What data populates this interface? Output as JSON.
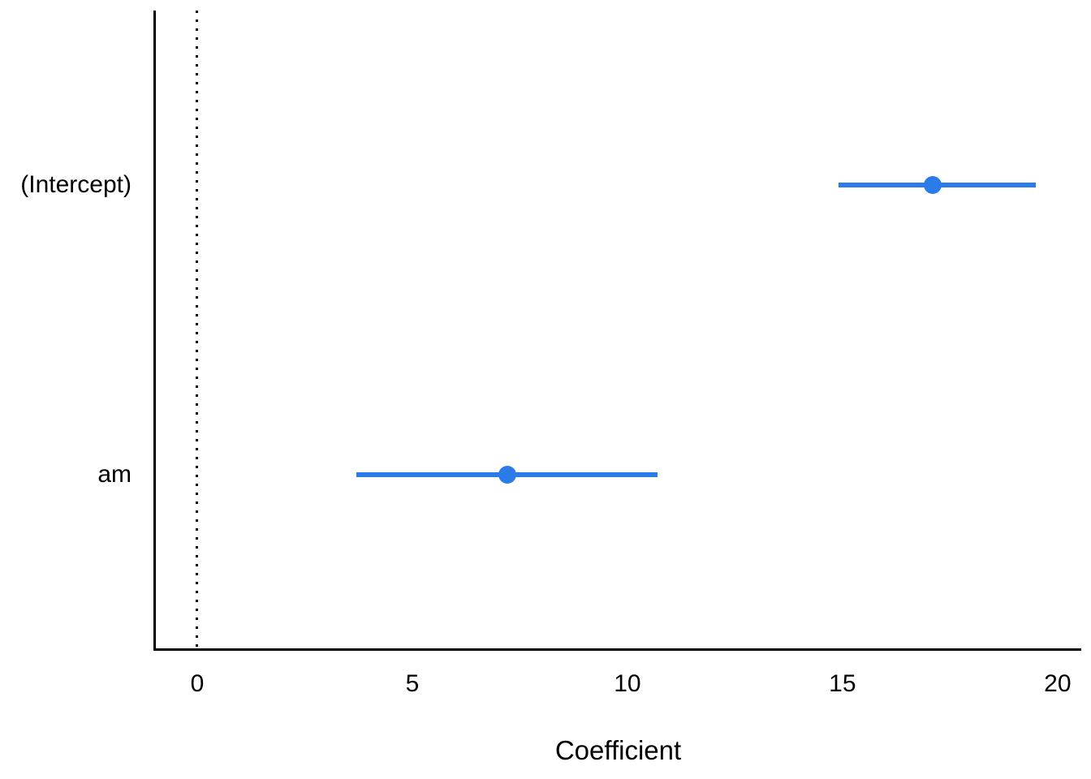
{
  "figure": {
    "background": "#ffffff"
  },
  "chart_data": {
    "type": "scatter",
    "subtype": "coefficient-forest-plot",
    "title": "",
    "xlabel": "Coefficient",
    "ylabel": "",
    "xlim": [
      -0.98,
      20.55
    ],
    "xticks": [
      "0",
      "5",
      "10",
      "15",
      "20"
    ],
    "xtick_values": [
      0,
      5,
      10,
      15,
      20
    ],
    "categories": [
      "(Intercept)",
      "am"
    ],
    "points": [
      {
        "label": "(Intercept)",
        "estimate": 17.1,
        "ci_low": 14.9,
        "ci_high": 19.5
      },
      {
        "label": "am",
        "estimate": 7.2,
        "ci_low": 3.7,
        "ci_high": 10.7
      }
    ],
    "reference_line": {
      "x": 0,
      "style": "dotted",
      "color": "#000000"
    },
    "grid": false,
    "legend": false,
    "tick_marks": false,
    "colors": {
      "point": "#2b7ce9",
      "ci": "#2b7ce9",
      "axis": "#000000",
      "text": "#000000"
    }
  }
}
